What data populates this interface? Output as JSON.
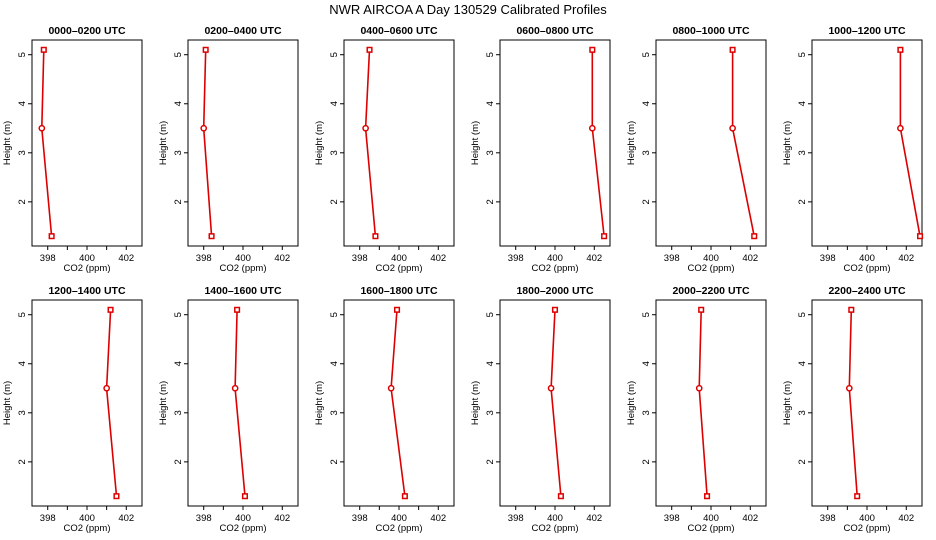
{
  "title": "NWR AIRCOA A  Day 130529  Calibrated Profiles",
  "colors": {
    "profile": "#dd0000",
    "marker_fill": "#ffffff"
  },
  "chart_data": {
    "type": "line",
    "xlabel": "CO2 (ppm)",
    "ylabel": "Height (m)",
    "xlim": [
      397.2,
      402.8
    ],
    "ylim": [
      1.1,
      5.3
    ],
    "xticks": [
      398,
      400,
      402
    ],
    "yticks": [
      2,
      3,
      4,
      5
    ],
    "heights": [
      5.1,
      3.5,
      1.3
    ],
    "marker_shapes": [
      "square",
      "circle",
      "square"
    ],
    "grid": false,
    "panels": [
      {
        "title": "0000–0200 UTC",
        "co2": [
          397.8,
          397.7,
          398.2
        ]
      },
      {
        "title": "0200–0400 UTC",
        "co2": [
          398.1,
          398.0,
          398.4
        ]
      },
      {
        "title": "0400–0600 UTC",
        "co2": [
          398.5,
          398.3,
          398.8
        ]
      },
      {
        "title": "0600–0800 UTC",
        "co2": [
          401.9,
          401.9,
          402.5
        ]
      },
      {
        "title": "0800–1000 UTC",
        "co2": [
          401.1,
          401.1,
          402.2
        ]
      },
      {
        "title": "1000–1200 UTC",
        "co2": [
          401.7,
          401.7,
          402.7
        ]
      },
      {
        "title": "1200–1400 UTC",
        "co2": [
          401.2,
          401.0,
          401.5
        ]
      },
      {
        "title": "1400–1600 UTC",
        "co2": [
          399.7,
          399.6,
          400.1
        ]
      },
      {
        "title": "1600–1800 UTC",
        "co2": [
          399.9,
          399.6,
          400.3
        ]
      },
      {
        "title": "1800–2000 UTC",
        "co2": [
          400.0,
          399.8,
          400.3
        ]
      },
      {
        "title": "2000–2200 UTC",
        "co2": [
          399.5,
          399.4,
          399.8
        ]
      },
      {
        "title": "2200–2400 UTC",
        "co2": [
          399.2,
          399.1,
          399.5
        ]
      }
    ]
  }
}
